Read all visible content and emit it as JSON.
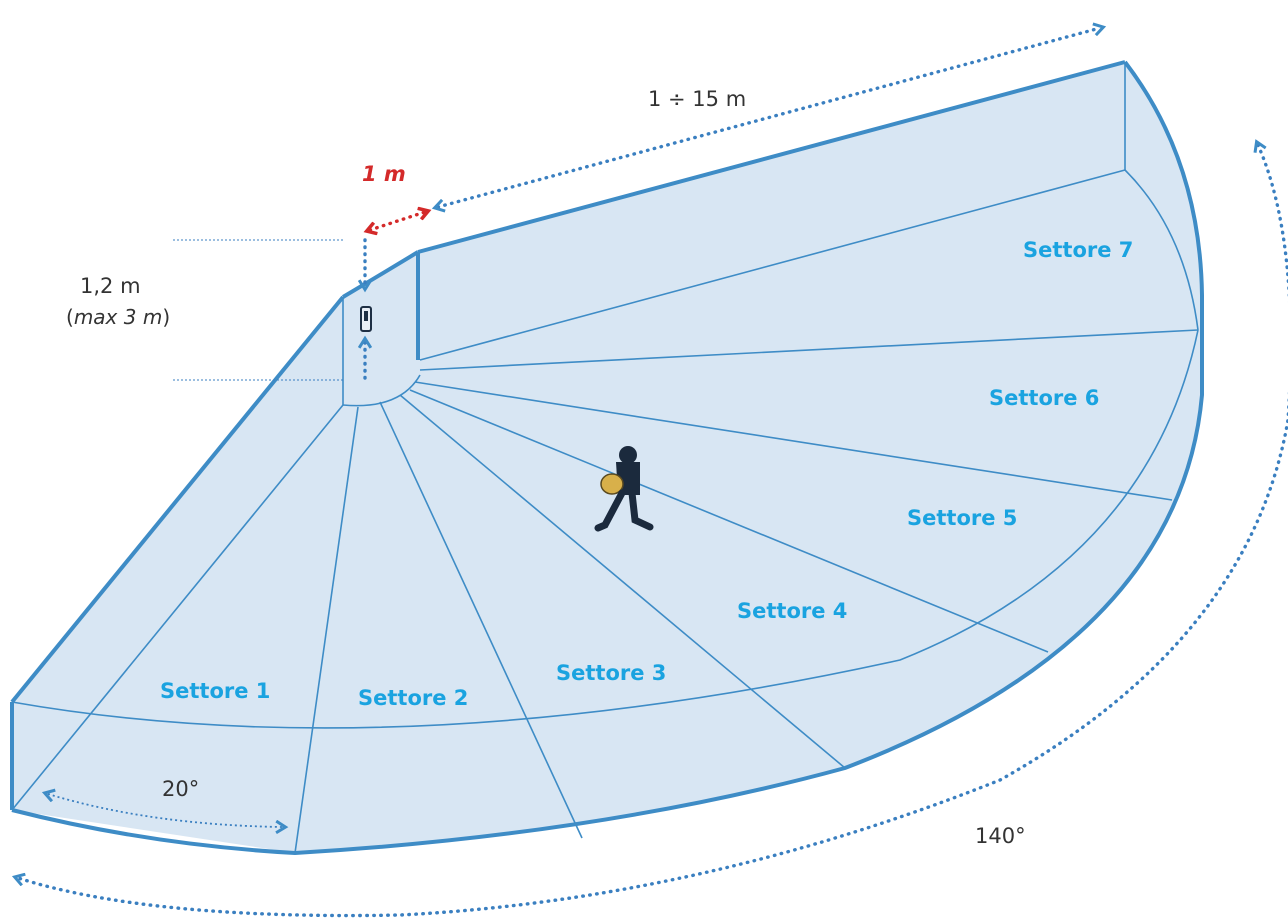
{
  "sectors": [
    {
      "label": "Settore 1"
    },
    {
      "label": "Settore 2"
    },
    {
      "label": "Settore 3"
    },
    {
      "label": "Settore 4"
    },
    {
      "label": "Settore 5"
    },
    {
      "label": "Settore 6"
    },
    {
      "label": "Settore 7"
    }
  ],
  "dimensions": {
    "range": "1 ÷ 15 m",
    "min_distance": "1 m",
    "height": "1,2 m",
    "height_max_open": "(",
    "height_max": "max 3 m",
    "height_max_close": ")",
    "sector_angle": "20°",
    "total_angle": "140°"
  },
  "colors": {
    "fill": "#d8e6f3",
    "stroke": "#3e8cc6",
    "dotted": "#3a7fc0",
    "label": "#1aa3e0",
    "red": "#d42a2a"
  },
  "icons": [
    "sensor-icon",
    "walking-person-icon"
  ]
}
